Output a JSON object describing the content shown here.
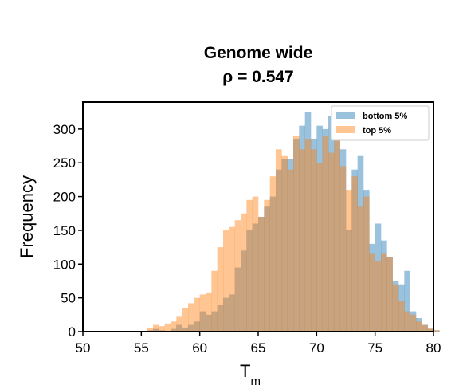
{
  "chart_data": {
    "type": "bar",
    "subtype": "overlaid-histogram",
    "title": "Genome wide",
    "subtitle": "ρ = 0.547",
    "xlabel": "T",
    "xlabel_subscript": "m",
    "ylabel": "Frequency",
    "xlim": [
      50,
      80
    ],
    "ylim": [
      0,
      340
    ],
    "xticks": [
      50,
      55,
      60,
      65,
      70,
      75,
      80
    ],
    "yticks": [
      0,
      50,
      100,
      150,
      200,
      250,
      300
    ],
    "grid": false,
    "legend_position": "top-right",
    "bin_width": 0.5,
    "bin_start": 55.5,
    "overlap_color": "#c39a74",
    "series": [
      {
        "name": "bottom 5%",
        "color": "#1f77b4",
        "opacity": 0.45,
        "values": [
          2,
          4,
          2,
          1,
          4,
          10,
          6,
          10,
          15,
          30,
          25,
          30,
          40,
          50,
          55,
          95,
          120,
          150,
          160,
          170,
          185,
          200,
          240,
          255,
          255,
          285,
          305,
          325,
          285,
          305,
          300,
          320,
          318,
          270,
          150,
          240,
          260,
          210,
          130,
          160,
          135,
          110,
          75,
          70,
          90,
          30,
          20,
          10,
          4,
          2
        ]
      },
      {
        "name": "top 5%",
        "color": "#ff7f0e",
        "opacity": 0.45,
        "values": [
          5,
          10,
          8,
          12,
          15,
          22,
          35,
          42,
          50,
          55,
          58,
          90,
          125,
          150,
          155,
          165,
          175,
          195,
          200,
          170,
          195,
          230,
          270,
          260,
          240,
          290,
          270,
          285,
          270,
          250,
          290,
          265,
          300,
          245,
          210,
          230,
          185,
          200,
          115,
          105,
          115,
          110,
          70,
          45,
          30,
          25,
          15,
          10,
          5,
          2
        ]
      }
    ]
  }
}
